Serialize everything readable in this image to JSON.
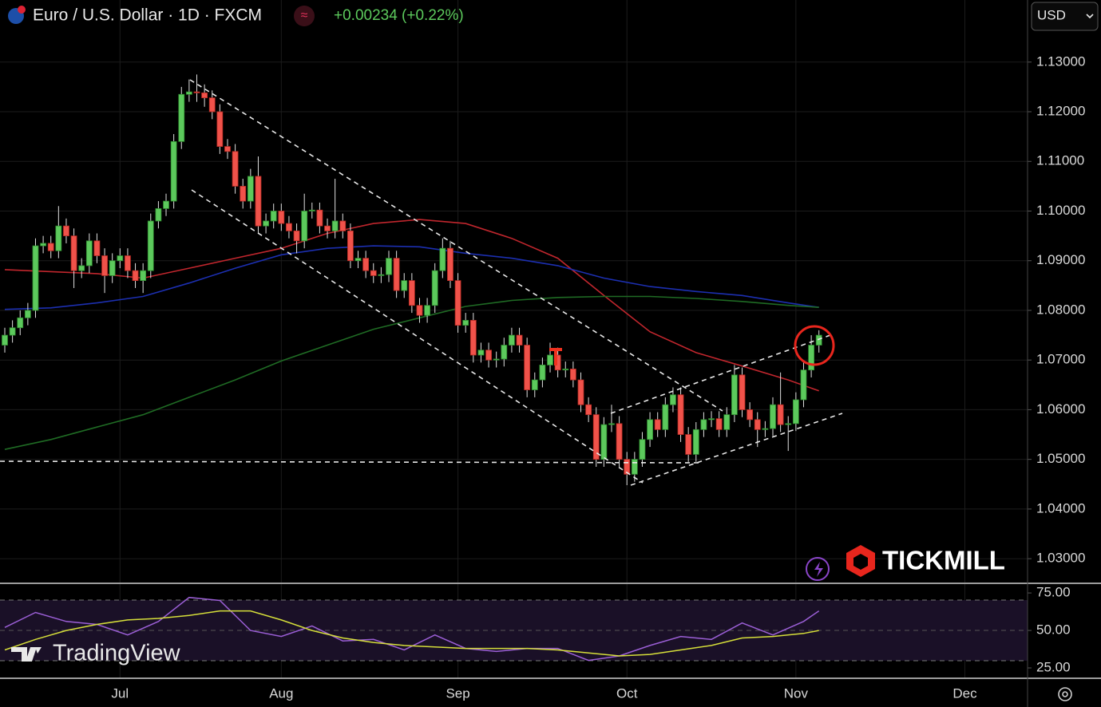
{
  "chart_data": {
    "type": "candlestick",
    "title": "Euro / U.S. Dollar · 1D · FXCM",
    "change_label": "+0.00234 (+0.22%)",
    "currency": "USD",
    "watermark": "TradingView",
    "brand": "TICKMILL",
    "up_color": "#5cc95c",
    "down_color": "#f0524a",
    "grid": true,
    "categories": [
      null,
      null,
      null,
      null,
      null,
      null,
      null,
      null,
      null,
      null,
      null,
      null,
      null,
      null,
      null,
      "Jul",
      null,
      null,
      null,
      null,
      null,
      null,
      null,
      null,
      null,
      null,
      null,
      null,
      null,
      null,
      null,
      null,
      null,
      null,
      null,
      null,
      "Aug",
      null,
      null,
      null,
      null,
      null,
      null,
      null,
      null,
      null,
      null,
      null,
      null,
      null,
      null,
      null,
      null,
      null,
      null,
      null,
      null,
      null,
      null,
      "Sep",
      null,
      null,
      null,
      null,
      null,
      null,
      null,
      null,
      null,
      null,
      null,
      null,
      null,
      null,
      null,
      null,
      null,
      null,
      null,
      null,
      null,
      "Oct",
      null,
      null,
      null,
      null,
      null,
      null,
      null,
      null,
      null,
      null,
      null,
      null,
      null,
      null,
      null,
      null,
      null,
      null,
      null,
      null,
      null,
      "Nov",
      null,
      null,
      null,
      null,
      null,
      null,
      null,
      null,
      null,
      null,
      null,
      null,
      null,
      null,
      null,
      null,
      null,
      null,
      null,
      null,
      null,
      "Dec",
      null,
      null,
      null,
      null,
      null,
      null,
      null
    ],
    "ohlc": [
      [
        1.073,
        1.0765,
        1.0715,
        1.075
      ],
      [
        1.075,
        1.078,
        1.0735,
        1.0765
      ],
      [
        1.0765,
        1.08,
        1.075,
        1.0785
      ],
      [
        1.0785,
        1.0815,
        1.077,
        1.08
      ],
      [
        1.08,
        1.0945,
        1.0785,
        1.093
      ],
      [
        1.093,
        1.095,
        1.0915,
        1.0935
      ],
      [
        1.0935,
        1.095,
        1.0905,
        1.092
      ],
      [
        1.092,
        1.101,
        1.0905,
        1.097
      ],
      [
        1.097,
        1.0985,
        1.0935,
        1.095
      ],
      [
        1.095,
        1.0965,
        1.0845,
        1.088
      ],
      [
        1.088,
        1.0905,
        1.0865,
        1.089
      ],
      [
        1.089,
        1.0955,
        1.0875,
        1.094
      ],
      [
        1.094,
        1.0955,
        1.0895,
        1.091
      ],
      [
        1.091,
        1.0925,
        1.0835,
        1.087
      ],
      [
        1.087,
        1.0915,
        1.0855,
        1.09
      ],
      [
        1.09,
        1.0925,
        1.0885,
        1.091
      ],
      [
        1.091,
        1.0925,
        1.0865,
        1.088
      ],
      [
        1.088,
        1.0895,
        1.0845,
        1.086
      ],
      [
        1.086,
        1.0895,
        1.0835,
        1.088
      ],
      [
        1.088,
        1.0995,
        1.0865,
        1.098
      ],
      [
        1.098,
        1.102,
        1.0965,
        1.1005
      ],
      [
        1.1005,
        1.1035,
        1.099,
        1.102
      ],
      [
        1.102,
        1.1155,
        1.1005,
        1.114
      ],
      [
        1.114,
        1.125,
        1.1125,
        1.1235
      ],
      [
        1.1235,
        1.1265,
        1.122,
        1.124
      ],
      [
        1.124,
        1.1275,
        1.122,
        1.1238
      ],
      [
        1.1238,
        1.1255,
        1.121,
        1.1228
      ],
      [
        1.1228,
        1.1243,
        1.1185,
        1.12
      ],
      [
        1.12,
        1.1215,
        1.1115,
        1.113
      ],
      [
        1.113,
        1.1145,
        1.1105,
        1.112
      ],
      [
        1.112,
        1.1135,
        1.1035,
        1.105
      ],
      [
        1.105,
        1.1065,
        1.1005,
        1.102
      ],
      [
        1.102,
        1.1085,
        1.1005,
        1.107
      ],
      [
        1.107,
        1.111,
        1.0955,
        1.097
      ],
      [
        1.097,
        1.0995,
        1.0955,
        1.098
      ],
      [
        1.098,
        1.1015,
        1.0965,
        1.1
      ],
      [
        1.1,
        1.1015,
        1.096,
        1.0975
      ],
      [
        1.0975,
        1.099,
        1.0945,
        1.096
      ],
      [
        1.096,
        1.0975,
        1.0915,
        1.094
      ],
      [
        1.094,
        1.1035,
        1.0925,
        1.1
      ],
      [
        1.1,
        1.1017,
        1.0985,
        1.1002
      ],
      [
        1.1002,
        1.1017,
        1.0955,
        1.097
      ],
      [
        1.097,
        1.0985,
        1.0945,
        1.096
      ],
      [
        1.096,
        1.1065,
        1.0945,
        1.098
      ],
      [
        1.098,
        1.0995,
        1.0945,
        1.096
      ],
      [
        1.096,
        1.0975,
        1.0885,
        1.09
      ],
      [
        1.09,
        1.092,
        1.0885,
        1.0905
      ],
      [
        1.0905,
        1.092,
        1.0865,
        1.088
      ],
      [
        1.088,
        1.0895,
        1.0855,
        1.087
      ],
      [
        1.087,
        1.0887,
        1.0855,
        1.0872
      ],
      [
        1.0872,
        1.092,
        1.0857,
        1.0905
      ],
      [
        1.0905,
        1.092,
        1.0825,
        1.084
      ],
      [
        1.084,
        1.0875,
        1.0825,
        1.086
      ],
      [
        1.086,
        1.0875,
        1.0795,
        1.081
      ],
      [
        1.081,
        1.0825,
        1.0775,
        1.079
      ],
      [
        1.079,
        1.0825,
        1.0775,
        1.081
      ],
      [
        1.081,
        1.0895,
        1.0795,
        1.088
      ],
      [
        1.088,
        1.0945,
        1.0865,
        1.0925
      ],
      [
        1.0925,
        1.094,
        1.0845,
        1.086
      ],
      [
        1.086,
        1.0875,
        1.0755,
        1.077
      ],
      [
        1.077,
        1.0795,
        1.0755,
        1.078
      ],
      [
        1.078,
        1.0795,
        1.0695,
        1.071
      ],
      [
        1.071,
        1.0735,
        1.0695,
        1.072
      ],
      [
        1.072,
        1.0735,
        1.0685,
        1.07
      ],
      [
        1.07,
        1.0717,
        1.0685,
        1.0702
      ],
      [
        1.0702,
        1.0745,
        1.0687,
        1.073
      ],
      [
        1.073,
        1.0765,
        1.0715,
        1.075
      ],
      [
        1.075,
        1.0765,
        1.0715,
        1.073
      ],
      [
        1.073,
        1.0745,
        1.0625,
        1.064
      ],
      [
        1.064,
        1.0675,
        1.0625,
        1.066
      ],
      [
        1.066,
        1.0705,
        1.0645,
        1.069
      ],
      [
        1.069,
        1.0735,
        1.0675,
        1.071
      ],
      [
        1.071,
        1.0725,
        1.0665,
        1.068
      ],
      [
        1.068,
        1.0697,
        1.0665,
        1.0682
      ],
      [
        1.0682,
        1.0697,
        1.0645,
        1.066
      ],
      [
        1.066,
        1.0675,
        1.0595,
        1.061
      ],
      [
        1.061,
        1.0625,
        1.0575,
        1.059
      ],
      [
        1.059,
        1.0605,
        1.0485,
        1.05
      ],
      [
        1.05,
        1.0585,
        1.0485,
        1.057
      ],
      [
        1.057,
        1.061,
        1.0555,
        1.0572
      ],
      [
        1.0572,
        1.0587,
        1.0485,
        1.05
      ],
      [
        1.05,
        1.0515,
        1.0448,
        1.047
      ],
      [
        1.047,
        1.0515,
        1.0455,
        1.05
      ],
      [
        1.05,
        1.0555,
        1.0485,
        1.054
      ],
      [
        1.054,
        1.0595,
        1.0525,
        1.058
      ],
      [
        1.058,
        1.0595,
        1.0545,
        1.056
      ],
      [
        1.056,
        1.0625,
        1.0545,
        1.061
      ],
      [
        1.061,
        1.0645,
        1.0595,
        1.063
      ],
      [
        1.063,
        1.0645,
        1.0535,
        1.055
      ],
      [
        1.055,
        1.0565,
        1.0495,
        1.051
      ],
      [
        1.051,
        1.0575,
        1.0495,
        1.056
      ],
      [
        1.056,
        1.0595,
        1.0545,
        1.058
      ],
      [
        1.058,
        1.0597,
        1.0565,
        1.0582
      ],
      [
        1.0582,
        1.0597,
        1.0545,
        1.056
      ],
      [
        1.056,
        1.0605,
        1.0545,
        1.059
      ],
      [
        1.059,
        1.069,
        1.0575,
        1.067
      ],
      [
        1.067,
        1.0685,
        1.0585,
        1.06
      ],
      [
        1.06,
        1.0615,
        1.0565,
        1.058
      ],
      [
        1.058,
        1.0595,
        1.0525,
        1.056
      ],
      [
        1.056,
        1.0577,
        1.0545,
        1.0562
      ],
      [
        1.0562,
        1.0625,
        1.0547,
        1.061
      ],
      [
        1.061,
        1.0675,
        1.0555,
        1.057
      ],
      [
        1.057,
        1.0587,
        1.0517,
        1.0572
      ],
      [
        1.0572,
        1.0635,
        1.0557,
        1.062
      ],
      [
        1.062,
        1.0695,
        1.0605,
        1.068
      ],
      [
        1.068,
        1.075,
        1.0665,
        1.073
      ],
      [
        1.073,
        1.076,
        1.0715,
        1.075
      ],
      null,
      null,
      null,
      null,
      null,
      null,
      null,
      null,
      null,
      null,
      null,
      null,
      null,
      null,
      null,
      null,
      null,
      null,
      null,
      null,
      null,
      null,
      null,
      null,
      null,
      null
    ],
    "ylim": [
      1.0252,
      1.1425
    ],
    "yticks": [
      {
        "value": 1.03,
        "label": "1.03000"
      },
      {
        "value": 1.04,
        "label": "1.04000"
      },
      {
        "value": 1.05,
        "label": "1.05000"
      },
      {
        "value": 1.06,
        "label": "1.06000"
      },
      {
        "value": 1.07,
        "label": "1.07000"
      },
      {
        "value": 1.08,
        "label": "1.08000"
      },
      {
        "value": 1.09,
        "label": "1.09000"
      },
      {
        "value": 1.1,
        "label": "1.10000"
      },
      {
        "value": 1.11,
        "label": "1.11000"
      },
      {
        "value": 1.12,
        "label": "1.12000"
      },
      {
        "value": 1.13,
        "label": "1.13000"
      }
    ],
    "overlays": [
      {
        "color": "#c0262d",
        "x": [
          0,
          6,
          12,
          18,
          24,
          30,
          36,
          42,
          48,
          54,
          60,
          66,
          72,
          78,
          84,
          90,
          96,
          102,
          106
        ],
        "values": [
          1.0882,
          1.0878,
          1.0874,
          1.0865,
          1.0885,
          1.0905,
          1.0925,
          1.0955,
          1.0975,
          1.0983,
          1.0975,
          1.0945,
          1.0905,
          1.083,
          1.0757,
          1.0715,
          1.0688,
          1.066,
          1.0638
        ]
      },
      {
        "color": "#1c2fb0",
        "x": [
          0,
          6,
          12,
          18,
          24,
          30,
          36,
          42,
          48,
          54,
          60,
          66,
          72,
          78,
          84,
          90,
          96,
          102,
          106
        ],
        "values": [
          1.0802,
          1.0805,
          1.0815,
          1.0828,
          1.0855,
          1.0885,
          1.0912,
          1.0925,
          1.093,
          1.0928,
          1.0915,
          1.0905,
          1.089,
          1.0865,
          1.0848,
          1.0838,
          1.083,
          1.0815,
          1.0806
        ]
      },
      {
        "color": "#1f6b24",
        "x": [
          0,
          6,
          12,
          18,
          24,
          30,
          36,
          42,
          48,
          54,
          60,
          66,
          72,
          78,
          84,
          90,
          96,
          102,
          106
        ],
        "values": [
          1.052,
          1.054,
          1.0565,
          1.059,
          1.0625,
          1.066,
          1.0698,
          1.073,
          1.0762,
          1.0785,
          1.0808,
          1.082,
          1.0826,
          1.0828,
          1.0828,
          1.0824,
          1.0818,
          1.081,
          1.0806
        ]
      }
    ],
    "rsi": {
      "ylim": [
        18.1,
        80.9
      ],
      "yticks": [
        {
          "value": 75,
          "label": "75.00"
        },
        {
          "value": 50,
          "label": "50.00"
        },
        {
          "value": 25,
          "label": "25.00"
        }
      ],
      "series": [
        {
          "color": "#9b5fd6",
          "x": [
            0,
            4,
            8,
            12,
            16,
            20,
            24,
            28,
            32,
            36,
            40,
            44,
            48,
            52,
            56,
            60,
            64,
            68,
            72,
            76,
            80,
            84,
            88,
            92,
            96,
            100,
            104,
            106
          ],
          "values": [
            52,
            62,
            56,
            54,
            47,
            56,
            72,
            70,
            50,
            46,
            53,
            43,
            44,
            37,
            47,
            38,
            36,
            38,
            38,
            30,
            33,
            40,
            46,
            44,
            55,
            47,
            56,
            63
          ]
        },
        {
          "color": "#d6df3a",
          "x": [
            0,
            4,
            8,
            12,
            16,
            20,
            24,
            28,
            32,
            36,
            40,
            44,
            48,
            52,
            56,
            60,
            64,
            68,
            72,
            76,
            80,
            84,
            88,
            92,
            96,
            100,
            104,
            106
          ],
          "values": [
            37,
            44,
            50,
            54,
            57,
            58,
            60,
            63,
            63,
            57,
            50,
            45,
            42,
            40,
            39,
            38,
            38,
            38,
            37,
            35,
            33,
            34,
            37,
            40,
            45,
            46,
            48,
            50
          ]
        }
      ]
    }
  }
}
